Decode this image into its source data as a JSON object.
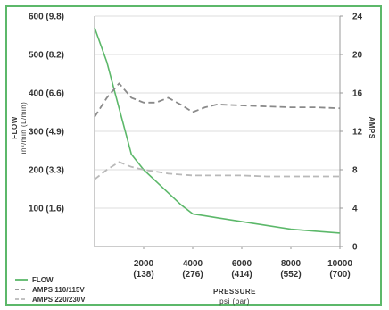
{
  "chart_data": {
    "type": "line",
    "xlabel": "PRESSURE",
    "xlabel_units": "psi (bar)",
    "ylabel_left": "FLOW",
    "ylabel_left_units": "in³/min (L/min)",
    "ylabel_right": "AMPS",
    "xlim": [
      0,
      10000
    ],
    "ylim_left": [
      0,
      600
    ],
    "ylim_right": [
      0,
      24
    ],
    "grid": true,
    "legend_position": "bottom-left",
    "x_ticks": [
      {
        "value": 2000,
        "label": "2000",
        "sub": "(138)"
      },
      {
        "value": 4000,
        "label": "4000",
        "sub": "(276)"
      },
      {
        "value": 6000,
        "label": "6000",
        "sub": "(414)"
      },
      {
        "value": 8000,
        "label": "8000",
        "sub": "(552)"
      },
      {
        "value": 10000,
        "label": "10000",
        "sub": "(700)"
      }
    ],
    "y_left_ticks": [
      {
        "value": 100,
        "label": "100 (1.6)"
      },
      {
        "value": 200,
        "label": "200 (3.3)"
      },
      {
        "value": 300,
        "label": "300 (4.9)"
      },
      {
        "value": 400,
        "label": "400 (6.6)"
      },
      {
        "value": 500,
        "label": "500 (8.2)"
      },
      {
        "value": 600,
        "label": "600 (9.8)"
      }
    ],
    "y_right_ticks": [
      {
        "value": 0,
        "label": "0"
      },
      {
        "value": 4,
        "label": "4"
      },
      {
        "value": 8,
        "label": "8"
      },
      {
        "value": 12,
        "label": "12"
      },
      {
        "value": 16,
        "label": "16"
      },
      {
        "value": 20,
        "label": "20"
      },
      {
        "value": 24,
        "label": "24"
      }
    ],
    "series": [
      {
        "name": "FLOW",
        "axis": "left",
        "color": "#5cb86a",
        "style": "solid",
        "x": [
          0,
          500,
          1000,
          1500,
          2000,
          2500,
          3000,
          3500,
          4000,
          4500,
          5000,
          6000,
          7000,
          8000,
          9000,
          10000
        ],
        "y": [
          570,
          480,
          360,
          240,
          200,
          170,
          140,
          110,
          85,
          80,
          75,
          65,
          55,
          45,
          40,
          35
        ]
      },
      {
        "name": "AMPS 110/115V",
        "axis": "right",
        "color": "#8a8a8a",
        "style": "dashed",
        "x": [
          0,
          500,
          1000,
          1500,
          2000,
          2500,
          3000,
          3500,
          4000,
          4500,
          5000,
          6000,
          7000,
          8000,
          9000,
          10000
        ],
        "y": [
          13.5,
          15.5,
          17,
          15.5,
          15,
          15,
          15.5,
          14.8,
          14,
          14.5,
          14.8,
          14.7,
          14.6,
          14.5,
          14.5,
          14.4
        ]
      },
      {
        "name": "AMPS 220/230V",
        "axis": "right",
        "color": "#b9b9b9",
        "style": "dashed",
        "x": [
          0,
          500,
          1000,
          1500,
          2000,
          2500,
          3000,
          3500,
          4000,
          5000,
          6000,
          7000,
          8000,
          9000,
          10000
        ],
        "y": [
          7.0,
          8.0,
          8.8,
          8.3,
          8.0,
          7.8,
          7.6,
          7.5,
          7.4,
          7.4,
          7.4,
          7.3,
          7.3,
          7.3,
          7.3
        ]
      }
    ]
  }
}
